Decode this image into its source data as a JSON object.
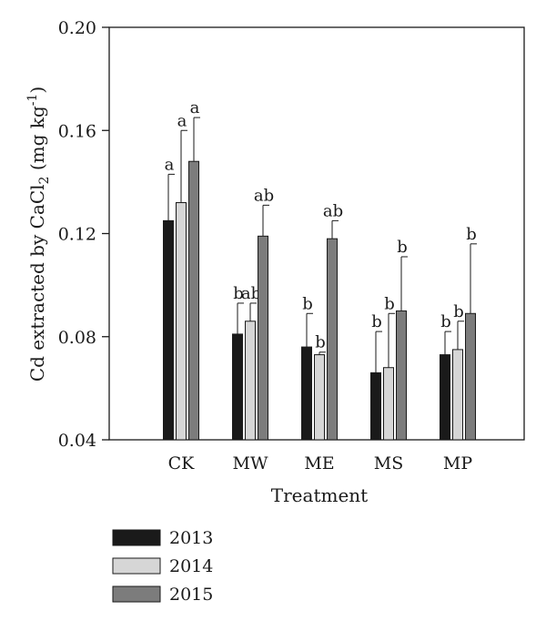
{
  "chart_data": {
    "type": "bar",
    "xlabel": "Treatment",
    "ylabel_parts": {
      "main": "Cd extracted by CaCl",
      "sub": "2",
      "unit_open": " (mg kg",
      "sup": "-1",
      "unit_close": ")"
    },
    "ylim": [
      0.04,
      0.2
    ],
    "yticks": [
      "0.04",
      "0.08",
      "0.12",
      "0.16",
      "0.20"
    ],
    "ytick_values": [
      0.04,
      0.08,
      0.12,
      0.16,
      0.2
    ],
    "grid": false,
    "legend_position": "bottom-left",
    "categories": [
      "CK",
      "MW",
      "ME",
      "MS",
      "MP"
    ],
    "series": [
      {
        "name": "2013",
        "color": "#1a1a1a",
        "values": [
          0.125,
          0.081,
          0.076,
          0.066,
          0.073
        ],
        "error": [
          0.018,
          0.012,
          0.013,
          0.016,
          0.009
        ],
        "letters": [
          "a",
          "b",
          "b",
          "b",
          "b"
        ]
      },
      {
        "name": "2014",
        "color": "#d6d6d6",
        "values": [
          0.132,
          0.086,
          0.073,
          0.068,
          0.075
        ],
        "error": [
          0.028,
          0.007,
          0.001,
          0.021,
          0.011
        ],
        "letters": [
          "a",
          "ab",
          "b",
          "b",
          "b"
        ]
      },
      {
        "name": "2015",
        "color": "#7c7c7c",
        "values": [
          0.148,
          0.119,
          0.118,
          0.09,
          0.089
        ],
        "error": [
          0.017,
          0.012,
          0.007,
          0.021,
          0.027
        ],
        "letters": [
          "a",
          "ab",
          "ab",
          "b",
          "b"
        ]
      }
    ]
  }
}
